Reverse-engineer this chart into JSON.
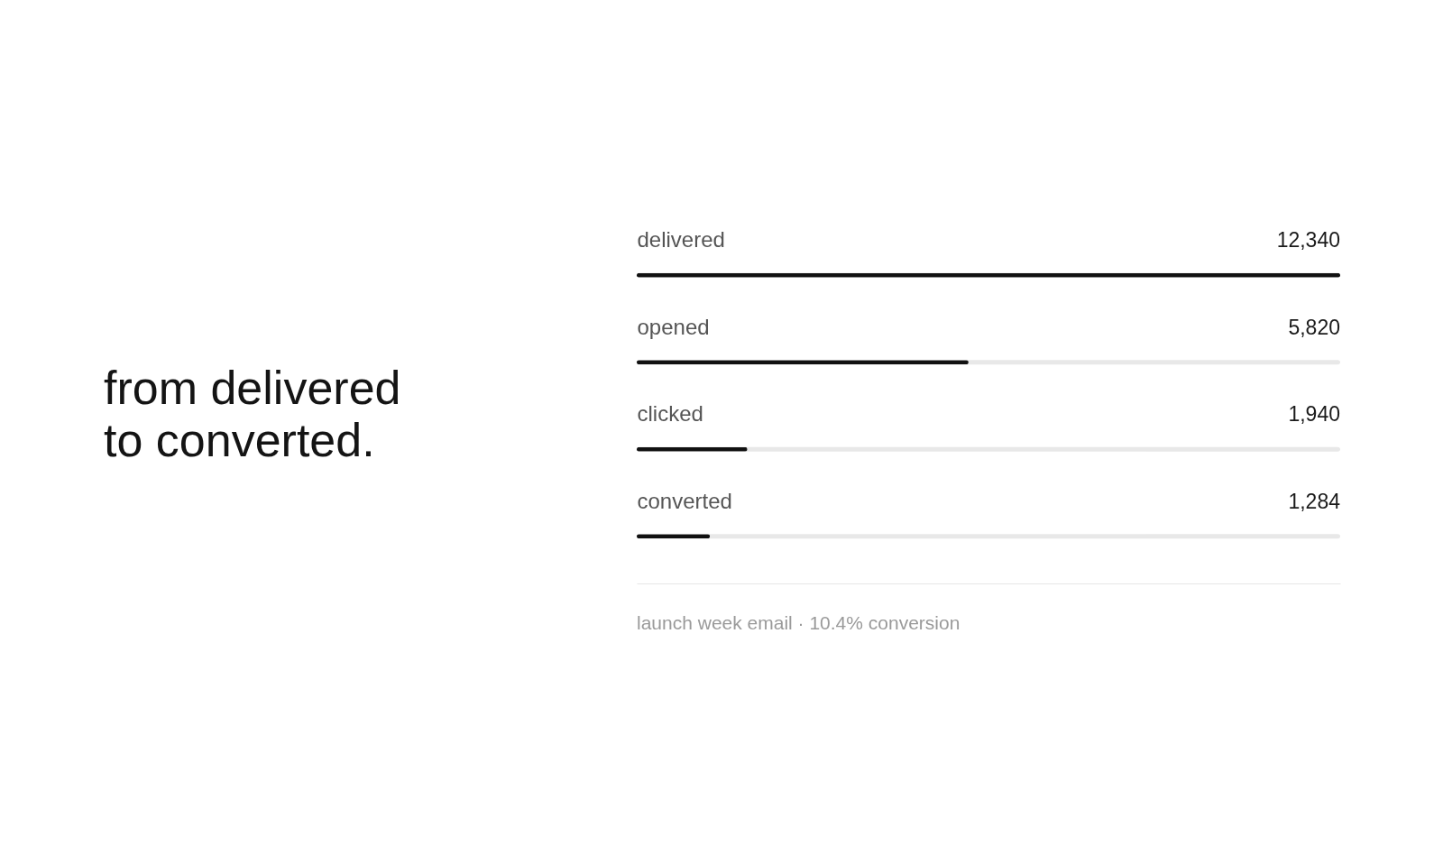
{
  "chart_data": {
    "type": "bar",
    "orientation": "horizontal",
    "title": "from delivered\nto converted.",
    "categories": [
      "delivered",
      "opened",
      "clicked",
      "converted"
    ],
    "values": [
      12340,
      5820,
      1940,
      1284
    ],
    "value_labels": [
      "12,340",
      "5,820",
      "1,940",
      "1,284"
    ],
    "color": "#111111",
    "tick_labels": "y",
    "annotations": [
      "launch week email · 10.4% conversion"
    ]
  }
}
